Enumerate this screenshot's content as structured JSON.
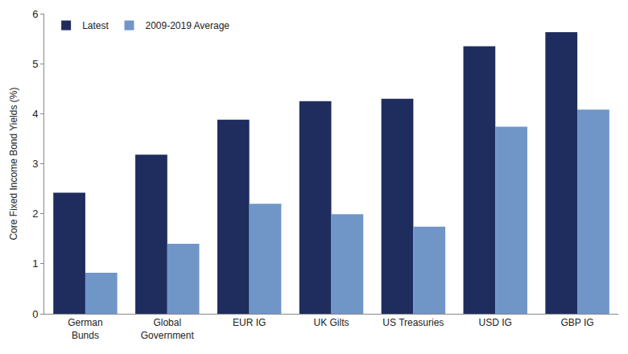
{
  "chart_data": {
    "type": "bar",
    "y_label": "Core Fixed Income Bond Yields (%)",
    "categories": [
      "German\nBunds",
      "Global\nGovernment",
      "EUR IG",
      "UK Gilts",
      "US Treasuries",
      "USD IG",
      "GBP IG"
    ],
    "series": [
      {
        "name": "Latest",
        "color": "#1f2d5e",
        "values": [
          2.42,
          3.18,
          3.88,
          4.25,
          4.3,
          5.35,
          5.63
        ]
      },
      {
        "name": "2009-2019 Average",
        "color": "#7096c8",
        "values": [
          0.82,
          1.4,
          2.2,
          1.99,
          1.74,
          3.74,
          4.08
        ]
      }
    ],
    "ylim": [
      0,
      6
    ],
    "yticks": [
      0,
      1,
      2,
      3,
      4,
      5,
      6
    ],
    "grid": false,
    "legend": "top left"
  }
}
